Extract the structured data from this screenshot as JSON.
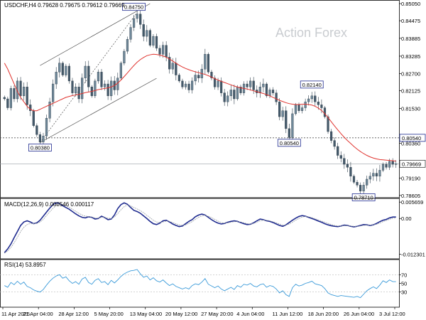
{
  "chart_data": [
    {
      "type": "candlestick",
      "title": "USDCHF,H4 0.79628 0.79675 0.79612 0.79669",
      "watermark": "Action Forex",
      "ylim": [
        0.786,
        0.851
      ],
      "yticks": [
        0.8505,
        0.84475,
        0.83885,
        0.83285,
        0.827,
        0.82125,
        0.8153,
        0.8036,
        0.7919,
        0.78605
      ],
      "ytick_labels": [
        "0.85050",
        "0.84475",
        "0.83885",
        "0.83285",
        "0.82700",
        "0.82125",
        "0.81530",
        "0.80360",
        "0.79190",
        "0.78605"
      ],
      "xtick_labels": [
        "11 Apr 2025",
        "21 Apr 04:00",
        "28 Apr 12:00",
        "5 May 20:00",
        "13 May 04:00",
        "20 May 12:00",
        "27 May 20:00",
        "4 Jun 04:00",
        "11 Jun 12:00",
        "18 Jun 20:00",
        "26 Jun 04:00",
        "3 Jul 12:00"
      ],
      "price_tag": {
        "label": "0.79669",
        "value": 0.79669
      },
      "horizontal_lines": [
        {
          "label": "0.80540",
          "value": 0.8054,
          "style": "dotted"
        }
      ],
      "annotations": [
        {
          "label": "0.84750",
          "value": 0.8475,
          "x_index": 40
        },
        {
          "label": "0.80380",
          "value": 0.8038,
          "x_index": 11
        },
        {
          "label": "0.80540",
          "value": 0.8054,
          "x_index": 88
        },
        {
          "label": "0.82140",
          "value": 0.8214,
          "x_index": 95
        },
        {
          "label": "0.78710",
          "value": 0.7871,
          "x_index": 111
        }
      ],
      "channel": {
        "upper": [
          [
            11,
            0.8297
          ],
          [
            45,
            0.8505
          ]
        ],
        "lower": [
          [
            11,
            0.8038
          ],
          [
            47,
            0.8254
          ]
        ],
        "mid": [
          [
            11,
            0.8038
          ],
          [
            41,
            0.8475
          ]
        ]
      },
      "series": [
        {
          "name": "price",
          "color": "#5a7487",
          "close": [
            0.8185,
            0.8155,
            0.822,
            0.8185,
            0.8245,
            0.8195,
            0.8225,
            0.8165,
            0.8145,
            0.8095,
            0.8065,
            0.804,
            0.806,
            0.812,
            0.8175,
            0.8235,
            0.8275,
            0.8305,
            0.8265,
            0.8295,
            0.8245,
            0.8205,
            0.8225,
            0.8185,
            0.8255,
            0.8295,
            0.8225,
            0.8195,
            0.8245,
            0.8275,
            0.8225,
            0.8235,
            0.8195,
            0.8245,
            0.8215,
            0.8255,
            0.8305,
            0.8345,
            0.8385,
            0.8425,
            0.8455,
            0.847,
            0.8435,
            0.8395,
            0.8415,
            0.8365,
            0.8395,
            0.8355,
            0.8335,
            0.8365,
            0.8325,
            0.8285,
            0.8305,
            0.8265,
            0.8245,
            0.8225,
            0.8235,
            0.8215,
            0.8245,
            0.8265,
            0.8255,
            0.8285,
            0.8335,
            0.8275,
            0.8255,
            0.8225,
            0.8245,
            0.8205,
            0.8175,
            0.8195,
            0.8215,
            0.8185,
            0.8225,
            0.8205,
            0.8235,
            0.8225,
            0.8245,
            0.8215,
            0.8205,
            0.8225,
            0.8235,
            0.8195,
            0.8215,
            0.8205,
            0.8175,
            0.8125,
            0.8145,
            0.8085,
            0.8055,
            0.8135,
            0.8165,
            0.8145,
            0.8155,
            0.8175,
            0.8185,
            0.8195,
            0.8175,
            0.8165,
            0.8155,
            0.8125,
            0.8075,
            0.8045,
            0.8025,
            0.7995,
            0.7985,
            0.7965,
            0.7955,
            0.7925,
            0.7905,
            0.7895,
            0.7875,
            0.7895,
            0.7915,
            0.7925,
            0.7935,
            0.7925,
            0.7945,
            0.7965,
            0.7955,
            0.7975,
            0.7965,
            0.7967
          ]
        },
        {
          "name": "SMA",
          "color": "#e0342f",
          "values": [
            0.8305,
            0.8285,
            0.826,
            0.8235,
            0.821,
            0.819,
            0.8175,
            0.816,
            0.815,
            0.8145,
            0.8145,
            0.815,
            0.8155,
            0.816,
            0.8165,
            0.817,
            0.8175,
            0.818,
            0.8185,
            0.819,
            0.8193,
            0.8196,
            0.8198,
            0.82,
            0.8203,
            0.8206,
            0.8208,
            0.821,
            0.8213,
            0.8216,
            0.8218,
            0.822,
            0.8222,
            0.8225,
            0.823,
            0.8238,
            0.8248,
            0.826,
            0.8272,
            0.8285,
            0.8297,
            0.8308,
            0.8317,
            0.8324,
            0.833,
            0.8333,
            0.8335,
            0.8334,
            0.8332,
            0.8329,
            0.8325,
            0.8319,
            0.8312,
            0.8305,
            0.8298,
            0.8292,
            0.8287,
            0.8283,
            0.8279,
            0.8276,
            0.8273,
            0.827,
            0.8267,
            0.8263,
            0.8258,
            0.8253,
            0.8248,
            0.8244,
            0.824,
            0.8236,
            0.8232,
            0.8228,
            0.8225,
            0.8222,
            0.822,
            0.8218,
            0.8215,
            0.8212,
            0.8209,
            0.8206,
            0.8203,
            0.8199,
            0.8195,
            0.819,
            0.8185,
            0.818,
            0.8176,
            0.8172,
            0.8169,
            0.8167,
            0.8166,
            0.8166,
            0.8167,
            0.8167,
            0.8166,
            0.8164,
            0.816,
            0.8154,
            0.8146,
            0.8135,
            0.8122,
            0.8108,
            0.8094,
            0.8081,
            0.8068,
            0.8056,
            0.8045,
            0.8035,
            0.8025,
            0.8016,
            0.8008,
            0.8001,
            0.7995,
            0.799,
            0.7986,
            0.7983,
            0.7981,
            0.798,
            0.7979,
            0.7978,
            0.7977,
            0.7976
          ]
        }
      ]
    },
    {
      "type": "line",
      "title": "MACD(12,26,9) 0.000546 0.000117",
      "ylim": [
        -0.0132,
        0.0062
      ],
      "yticks": [
        0.005659,
        0.0,
        -0.012301
      ],
      "ytick_labels": [
        "0.005659",
        "0.00",
        "-0.012301"
      ],
      "series": [
        {
          "name": "MACD",
          "color": "#1f2b8f",
          "values": [
            -0.0118,
            -0.0105,
            -0.0088,
            -0.0066,
            -0.0045,
            -0.0024,
            -0.0012,
            -0.0008,
            -0.0012,
            -0.0018,
            -0.0015,
            -0.0006,
            0.0008,
            0.0022,
            0.0036,
            0.0048,
            0.0054,
            0.0052,
            0.0044,
            0.0038,
            0.0032,
            0.0024,
            0.0016,
            0.0009,
            0.0004,
            0.0002,
            0.0006,
            0.0004,
            -0.0002,
            0.0,
            0.0008,
            0.0003,
            -0.0004,
            -0.0002,
            0.0012,
            0.0034,
            0.0048,
            0.0054,
            0.0049,
            0.0038,
            0.0028,
            0.0024,
            0.0018,
            0.0009,
            0.0,
            -0.001,
            -0.0018,
            -0.0021,
            -0.0016,
            -0.0008,
            -0.0006,
            -0.0012,
            -0.0019,
            -0.0024,
            -0.0028,
            -0.0026,
            -0.0018,
            -0.001,
            -0.0004,
            0.0006,
            0.0012,
            0.0015,
            0.0012,
            0.0004,
            -0.0004,
            -0.0011,
            -0.0016,
            -0.0019,
            -0.0017,
            -0.0013,
            -0.001,
            -0.0008,
            -0.001,
            -0.0014,
            -0.0018,
            -0.0021,
            -0.002,
            -0.0015,
            -0.0008,
            -0.0002,
            -0.0004,
            -0.0008,
            -0.001,
            -0.0014,
            -0.0019,
            -0.0024,
            -0.0027,
            -0.0022,
            -0.0014,
            -0.0006,
            0.0001,
            0.0007,
            0.001,
            0.0008,
            0.0004,
            0.0,
            -0.0004,
            -0.0009,
            -0.0013,
            -0.0018,
            -0.0022,
            -0.0025,
            -0.0027,
            -0.0028,
            -0.0026,
            -0.0023,
            -0.0024,
            -0.0027,
            -0.0029,
            -0.0027,
            -0.0024,
            -0.0021,
            -0.0022,
            -0.0024,
            -0.0022,
            -0.0017,
            -0.0011,
            -0.0006,
            -0.0003,
            0.0002,
            0.0005,
            0.0005
          ]
        },
        {
          "name": "Signal",
          "color": "#9aa0a6",
          "values": [
            -0.012,
            -0.0112,
            -0.01,
            -0.0084,
            -0.0065,
            -0.0045,
            -0.003,
            -0.0021,
            -0.0017,
            -0.0018,
            -0.0017,
            -0.0012,
            -0.0003,
            0.001,
            0.0023,
            0.0035,
            0.0045,
            0.005,
            0.0049,
            0.0045,
            0.0039,
            0.0032,
            0.0025,
            0.0018,
            0.0012,
            0.0008,
            0.0007,
            0.0005,
            0.0002,
            0.0001,
            0.0004,
            0.0004,
            0.0001,
            0.0,
            0.0005,
            0.0017,
            0.003,
            0.0041,
            0.0046,
            0.0044,
            0.0038,
            0.0033,
            0.0027,
            0.002,
            0.0011,
            0.0003,
            -0.0006,
            -0.0012,
            -0.0014,
            -0.0012,
            -0.0009,
            -0.001,
            -0.0014,
            -0.0018,
            -0.0022,
            -0.0024,
            -0.0022,
            -0.0017,
            -0.0011,
            -0.0003,
            0.0004,
            0.0009,
            0.0011,
            0.0008,
            0.0003,
            -0.0003,
            -0.0009,
            -0.0014,
            -0.0016,
            -0.0015,
            -0.0013,
            -0.0011,
            -0.0011,
            -0.0012,
            -0.0015,
            -0.0018,
            -0.0019,
            -0.0017,
            -0.0013,
            -0.0008,
            -0.0006,
            -0.0006,
            -0.0008,
            -0.0011,
            -0.0015,
            -0.0019,
            -0.0023,
            -0.0023,
            -0.0019,
            -0.0013,
            -0.0006,
            0.0,
            0.0005,
            0.0007,
            0.0006,
            0.0003,
            -0.0001,
            -0.0005,
            -0.0009,
            -0.0013,
            -0.0017,
            -0.0021,
            -0.0024,
            -0.0026,
            -0.0026,
            -0.0025,
            -0.0025,
            -0.0026,
            -0.0027,
            -0.0027,
            -0.0026,
            -0.0024,
            -0.0023,
            -0.0023,
            -0.0022,
            -0.002,
            -0.0016,
            -0.0011,
            -0.0007,
            -0.0003,
            0.0001,
            0.0001
          ]
        }
      ]
    },
    {
      "type": "line",
      "title": "RSI(14) 53.8957",
      "ylim": [
        0,
        100
      ],
      "yticks": [
        70,
        50,
        30
      ],
      "ytick_labels": [
        "70",
        "50",
        "30"
      ],
      "series": [
        {
          "name": "RSI",
          "color": "#3a9ad9",
          "values": [
            45,
            41,
            52,
            47,
            55,
            48,
            53,
            43,
            40,
            35,
            32,
            30,
            36,
            46,
            55,
            62,
            67,
            70,
            62,
            65,
            56,
            50,
            54,
            48,
            60,
            64,
            52,
            48,
            57,
            61,
            52,
            54,
            47,
            57,
            51,
            58,
            66,
            72,
            76,
            79,
            80,
            82,
            72,
            64,
            67,
            58,
            63,
            56,
            53,
            58,
            51,
            45,
            49,
            43,
            40,
            37,
            40,
            37,
            45,
            49,
            47,
            53,
            61,
            48,
            44,
            40,
            44,
            37,
            33,
            37,
            41,
            36,
            45,
            41,
            48,
            46,
            50,
            44,
            42,
            47,
            49,
            41,
            45,
            43,
            37,
            28,
            33,
            24,
            20,
            40,
            48,
            44,
            46,
            50,
            52,
            55,
            49,
            47,
            45,
            38,
            28,
            24,
            22,
            20,
            22,
            21,
            20,
            19,
            18,
            20,
            17,
            25,
            33,
            38,
            42,
            38,
            46,
            56,
            52,
            58,
            54,
            54
          ]
        }
      ]
    }
  ]
}
